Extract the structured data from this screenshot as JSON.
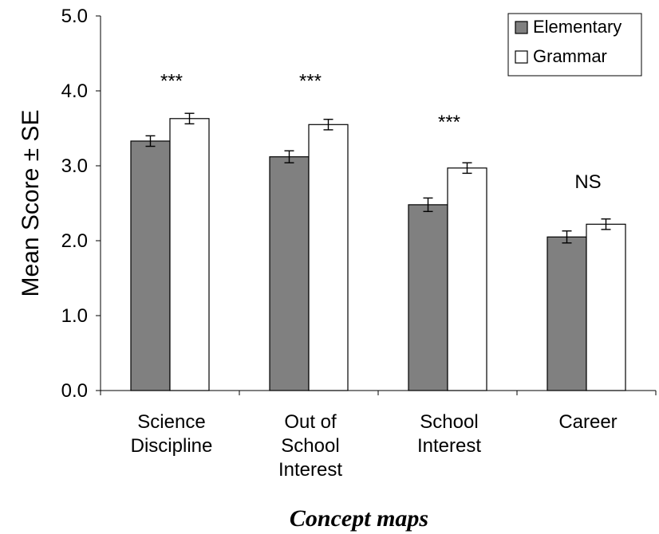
{
  "chart_data": {
    "type": "bar",
    "categories": [
      [
        "Science",
        "Discipline"
      ],
      [
        "Out of",
        "School",
        "Interest"
      ],
      [
        "School",
        "Interest"
      ],
      [
        "Career"
      ]
    ],
    "series": [
      {
        "name": "Elementary",
        "values": [
          3.33,
          3.12,
          2.48,
          2.05
        ],
        "se": [
          0.07,
          0.08,
          0.09,
          0.08
        ],
        "color": "#808080"
      },
      {
        "name": "Grammar",
        "values": [
          3.63,
          3.55,
          2.97,
          2.22
        ],
        "se": [
          0.07,
          0.07,
          0.07,
          0.07
        ],
        "color": "#ffffff"
      }
    ],
    "significance": [
      "***",
      "***",
      "***",
      "NS"
    ],
    "ylim": [
      0,
      5
    ],
    "yticks": [
      "0.0",
      "1.0",
      "2.0",
      "3.0",
      "4.0",
      "5.0"
    ],
    "ylabel": "Mean Score ± SE",
    "xlabel": "Concept maps",
    "grid": false,
    "legend_position": "top-right"
  }
}
